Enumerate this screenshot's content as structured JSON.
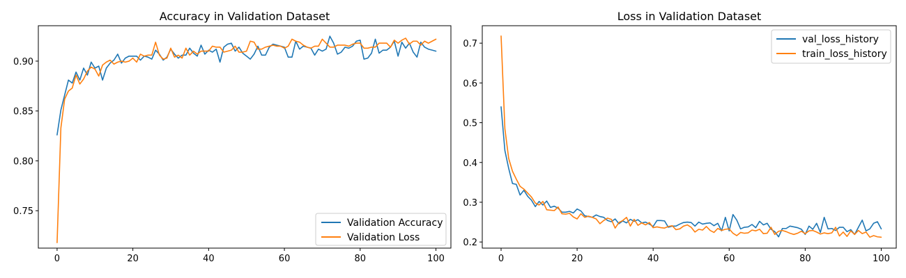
{
  "chart_data": [
    {
      "type": "line",
      "title": "Accuracy in Validation Dataset",
      "xlabel": "",
      "ylabel": "",
      "xlim": [
        -4.95,
        103.95
      ],
      "ylim": [
        0.7125,
        0.9355
      ],
      "xticks": [
        0,
        20,
        40,
        60,
        80,
        100
      ],
      "yticks": [
        0.75,
        0.8,
        0.85,
        0.9
      ],
      "xtick_labels": [
        "0",
        "20",
        "40",
        "60",
        "80",
        "100"
      ],
      "ytick_labels": [
        "0.75",
        "0.80",
        "0.85",
        "0.90"
      ],
      "grid": false,
      "legend_position": "lower right",
      "series": [
        {
          "name": "Validation Accuracy",
          "color": "#1f77b4",
          "x_start": 0,
          "values": [
            0.826,
            0.851,
            0.866,
            0.881,
            0.878,
            0.889,
            0.881,
            0.893,
            0.886,
            0.899,
            0.893,
            0.895,
            0.881,
            0.893,
            0.898,
            0.901,
            0.907,
            0.898,
            0.903,
            0.905,
            0.905,
            0.905,
            0.901,
            0.905,
            0.904,
            0.902,
            0.911,
            0.907,
            0.901,
            0.904,
            0.912,
            0.907,
            0.903,
            0.906,
            0.906,
            0.913,
            0.908,
            0.905,
            0.916,
            0.907,
            0.911,
            0.909,
            0.912,
            0.899,
            0.914,
            0.917,
            0.918,
            0.91,
            0.914,
            0.908,
            0.905,
            0.902,
            0.907,
            0.915,
            0.906,
            0.906,
            0.914,
            0.917,
            0.916,
            0.915,
            0.914,
            0.904,
            0.904,
            0.92,
            0.912,
            0.915,
            0.914,
            0.913,
            0.906,
            0.912,
            0.91,
            0.912,
            0.925,
            0.918,
            0.907,
            0.909,
            0.914,
            0.913,
            0.915,
            0.92,
            0.921,
            0.902,
            0.903,
            0.908,
            0.922,
            0.908,
            0.911,
            0.911,
            0.914,
            0.92,
            0.905,
            0.919,
            0.913,
            0.918,
            0.909,
            0.904,
            0.919,
            0.914,
            0.912,
            0.911,
            0.91
          ]
        },
        {
          "name": "Validation Loss",
          "color": "#ff7f0e",
          "x_start": 0,
          "values": [
            0.718,
            0.833,
            0.862,
            0.87,
            0.873,
            0.886,
            0.877,
            0.882,
            0.89,
            0.894,
            0.892,
            0.885,
            0.896,
            0.899,
            0.901,
            0.897,
            0.899,
            0.9,
            0.899,
            0.9,
            0.903,
            0.899,
            0.907,
            0.905,
            0.906,
            0.906,
            0.919,
            0.906,
            0.902,
            0.903,
            0.913,
            0.904,
            0.906,
            0.903,
            0.913,
            0.906,
            0.91,
            0.907,
            0.91,
            0.91,
            0.91,
            0.915,
            0.914,
            0.914,
            0.909,
            0.91,
            0.911,
            0.915,
            0.909,
            0.909,
            0.91,
            0.92,
            0.919,
            0.912,
            0.912,
            0.914,
            0.915,
            0.916,
            0.915,
            0.915,
            0.913,
            0.915,
            0.922,
            0.92,
            0.919,
            0.916,
            0.914,
            0.913,
            0.915,
            0.915,
            0.922,
            0.918,
            0.914,
            0.914,
            0.916,
            0.916,
            0.916,
            0.915,
            0.917,
            0.918,
            0.918,
            0.913,
            0.913,
            0.914,
            0.914,
            0.918,
            0.918,
            0.918,
            0.914,
            0.921,
            0.918,
            0.921,
            0.923,
            0.917,
            0.92,
            0.92,
            0.916,
            0.92,
            0.918,
            0.92,
            0.922
          ]
        }
      ]
    },
    {
      "type": "line",
      "title": "Loss in Validation Dataset",
      "xlabel": "",
      "ylabel": "",
      "xlim": [
        -4.95,
        103.95
      ],
      "ylim": [
        0.1846,
        0.7439
      ],
      "xticks": [
        0,
        20,
        40,
        60,
        80,
        100
      ],
      "yticks": [
        0.2,
        0.3,
        0.4,
        0.5,
        0.6,
        0.7
      ],
      "xtick_labels": [
        "0",
        "20",
        "40",
        "60",
        "80",
        "100"
      ],
      "ytick_labels": [
        "0.2",
        "0.3",
        "0.4",
        "0.5",
        "0.6",
        "0.7"
      ],
      "grid": false,
      "legend_position": "upper right",
      "series": [
        {
          "name": "val_loss_history",
          "color": "#1f77b4",
          "x_start": 0,
          "values": [
            0.54,
            0.43,
            0.385,
            0.347,
            0.345,
            0.318,
            0.33,
            0.315,
            0.305,
            0.289,
            0.302,
            0.293,
            0.303,
            0.287,
            0.29,
            0.285,
            0.275,
            0.275,
            0.277,
            0.273,
            0.283,
            0.278,
            0.266,
            0.264,
            0.262,
            0.268,
            0.264,
            0.262,
            0.254,
            0.251,
            0.258,
            0.246,
            0.253,
            0.248,
            0.257,
            0.252,
            0.256,
            0.248,
            0.25,
            0.245,
            0.239,
            0.254,
            0.254,
            0.253,
            0.237,
            0.24,
            0.24,
            0.245,
            0.249,
            0.25,
            0.249,
            0.24,
            0.25,
            0.245,
            0.247,
            0.248,
            0.241,
            0.247,
            0.228,
            0.262,
            0.228,
            0.269,
            0.255,
            0.233,
            0.237,
            0.238,
            0.244,
            0.236,
            0.252,
            0.243,
            0.247,
            0.232,
            0.226,
            0.213,
            0.234,
            0.234,
            0.24,
            0.238,
            0.236,
            0.232,
            0.219,
            0.24,
            0.232,
            0.247,
            0.224,
            0.262,
            0.233,
            0.234,
            0.229,
            0.237,
            0.237,
            0.226,
            0.231,
            0.219,
            0.237,
            0.255,
            0.228,
            0.233,
            0.247,
            0.251,
            0.233
          ]
        },
        {
          "name": "train_loss_history",
          "color": "#ff7f0e",
          "x_start": 0,
          "values": [
            0.718,
            0.485,
            0.41,
            0.378,
            0.358,
            0.34,
            0.333,
            0.323,
            0.313,
            0.298,
            0.293,
            0.302,
            0.281,
            0.28,
            0.279,
            0.288,
            0.271,
            0.27,
            0.272,
            0.263,
            0.258,
            0.271,
            0.262,
            0.265,
            0.262,
            0.258,
            0.246,
            0.254,
            0.26,
            0.257,
            0.235,
            0.249,
            0.254,
            0.262,
            0.24,
            0.257,
            0.242,
            0.248,
            0.243,
            0.249,
            0.236,
            0.238,
            0.236,
            0.235,
            0.239,
            0.241,
            0.231,
            0.233,
            0.24,
            0.243,
            0.237,
            0.225,
            0.232,
            0.23,
            0.239,
            0.229,
            0.224,
            0.234,
            0.229,
            0.232,
            0.233,
            0.222,
            0.216,
            0.224,
            0.222,
            0.223,
            0.23,
            0.228,
            0.232,
            0.221,
            0.222,
            0.237,
            0.219,
            0.227,
            0.229,
            0.226,
            0.222,
            0.219,
            0.222,
            0.227,
            0.221,
            0.228,
            0.229,
            0.225,
            0.22,
            0.223,
            0.221,
            0.223,
            0.237,
            0.215,
            0.225,
            0.214,
            0.228,
            0.219,
            0.229,
            0.221,
            0.225,
            0.212,
            0.216,
            0.213,
            0.212
          ]
        }
      ]
    }
  ]
}
